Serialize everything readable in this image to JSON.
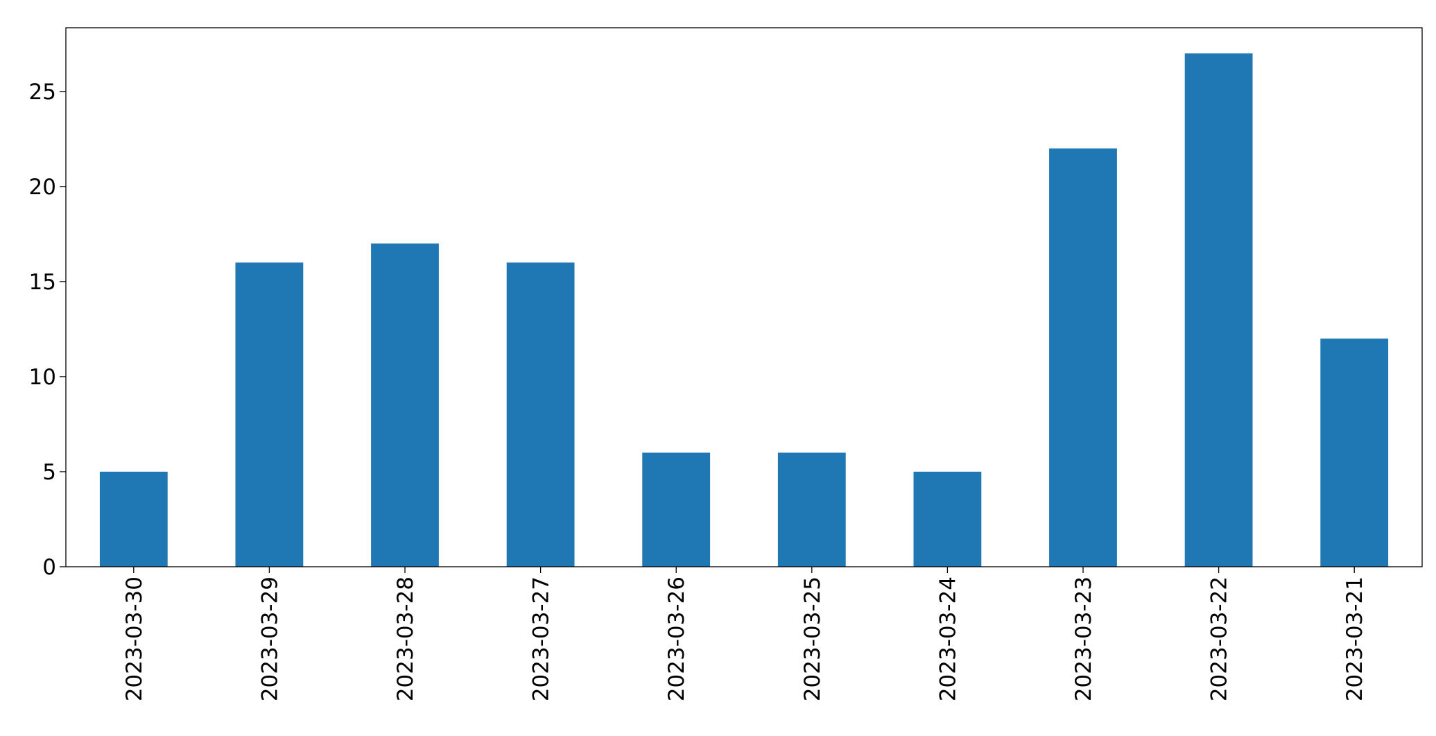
{
  "chart_data": {
    "type": "bar",
    "categories": [
      "2023-03-30",
      "2023-03-29",
      "2023-03-28",
      "2023-03-27",
      "2023-03-26",
      "2023-03-25",
      "2023-03-24",
      "2023-03-23",
      "2023-03-22",
      "2023-03-21"
    ],
    "values": [
      5,
      16,
      17,
      16,
      6,
      6,
      5,
      22,
      27,
      12
    ],
    "color": "#1f77b4",
    "ylim": [
      0,
      28.35
    ],
    "yticks": [
      0,
      5,
      10,
      15,
      20,
      25
    ],
    "grid": false
  }
}
